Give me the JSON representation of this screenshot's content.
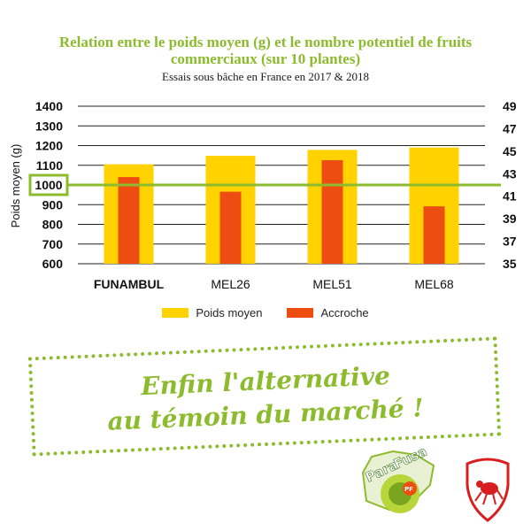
{
  "title_line1": "Relation entre le poids moyen (g) et le nombre potentiel de fruits",
  "title_line2": "commerciaux (sur 10 plantes)",
  "subtitle": "Essais sous bâche en France en 2017 & 2018",
  "slogan_line1": "Enfin l'alternative",
  "slogan_line2": "au témoin du marché !",
  "logo_text": [
    "Para",
    "Fusa",
    "PF"
  ],
  "colors": {
    "accent_green": "#8dbb2e",
    "poids": "#ffd200",
    "accroche": "#ee4d12",
    "grid": "#222222"
  },
  "chart_data": {
    "type": "bar",
    "title": "Relation entre le poids moyen (g) et le nombre potentiel de fruits commerciaux (sur 10 plantes)",
    "subtitle": "Essais sous bâche en France en 2017 & 2018",
    "ylabel": "Poids moyen (g)",
    "categories": [
      "FUNAMBUL",
      "MEL26",
      "MEL51",
      "MEL68"
    ],
    "ylim": [
      600,
      1400
    ],
    "yticks": [
      600,
      700,
      800,
      900,
      1000,
      1100,
      1200,
      1300,
      1400
    ],
    "y2lim": [
      35,
      49
    ],
    "y2ticks": [
      35,
      37,
      39,
      41,
      43,
      45,
      47,
      49
    ],
    "series": [
      {
        "name": "Poids moyen",
        "axis": "left",
        "values": [
          1105,
          1148,
          1178,
          1190
        ]
      },
      {
        "name": "Accroche",
        "axis": "right",
        "values": [
          42.7,
          41.4,
          44.2,
          40.1
        ]
      }
    ],
    "reference_line": {
      "axis": "left",
      "value": 1000,
      "label": "1000"
    },
    "legend_position": "bottom",
    "grid": true
  }
}
